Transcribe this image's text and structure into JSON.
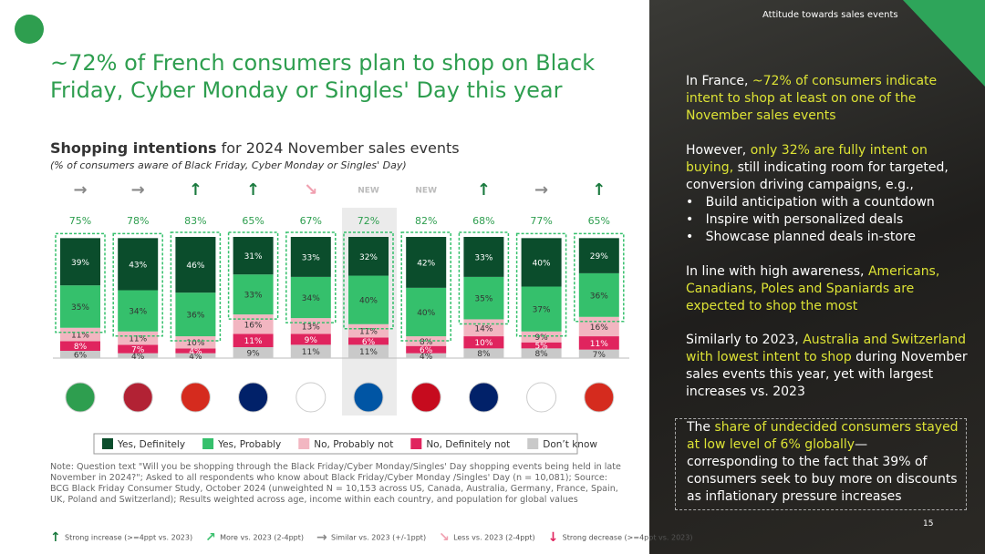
{
  "slide": {
    "headline": "~72% of French consumers plan to shop on Black Friday, Cyber Monday or Singles' Day this year",
    "panel_header": "Attitude towards sales events",
    "page_number": "15",
    "panel": {
      "p1": [
        "In France, ",
        "~72% of consumers indicate intent to shop at least on one of the November sales events"
      ],
      "p2": [
        "However, ",
        "only 32% are fully intent on buying,",
        " still indicating room for targeted, conversion driving campaigns, e.g.,"
      ],
      "bullets": [
        "Build anticipation with a countdown",
        "Inspire with personalized deals",
        "Showcase planned deals in-store"
      ],
      "p3": [
        "In line with high awareness, ",
        "Americans, Canadians, Poles and Spaniards are expected to shop the most"
      ],
      "p4": [
        "Similarly to 2023, ",
        "Australia and Switzerland with lowest intent to shop",
        " during November sales events this year, yet with largest increases vs. 2023"
      ],
      "p5": [
        "The ",
        "share of undecided consumers stayed at low level of 6% globally",
        "— corresponding to the fact that 39% of consumers seek to buy more on discounts as inflationary pressure increases"
      ]
    },
    "note": "Note: Question text \"Will you be shopping through the Black Friday/Cyber Monday/Singles' Day shopping events being held in late November in 2024?\"; Asked to all respondents who know about Black Friday/Cyber Monday /Singles' Day (n = 10,081); Source: BCG Black Friday Consumer Study, October 2024 (unweighted N = 10,153 across US, Canada, Australia, Germany, France, Spain, UK, Poland and Switzerland); Results weighted across age, income within each country, and population for global values",
    "trend_legend": [
      {
        "symbol": "↑",
        "label": "Strong increase (>=4ppt vs. 2023)",
        "color": "#1a7a3e"
      },
      {
        "symbol": "↗",
        "label": "More vs. 2023 (2-4ppt)",
        "color": "#3cc16f"
      },
      {
        "symbol": "→",
        "label": "Similar vs. 2023 (+/-1ppt)",
        "color": "#888888"
      },
      {
        "symbol": "↘",
        "label": "Less vs. 2023 (2-4ppt)",
        "color": "#f0a0b0"
      },
      {
        "symbol": "↓",
        "label": "Strong decrease (>=4ppt vs. 2023)",
        "color": "#e0245e"
      }
    ]
  },
  "chart_data": {
    "type": "stacked_bar",
    "title": "Shopping intentions",
    "title_rest": " for 2024 November sales events",
    "subtitle": "(% of consumers aware of Black Friday, Cyber Monday or Singles' Day)",
    "categories": [
      null,
      null,
      null,
      null,
      null,
      null,
      null,
      null,
      null,
      null
    ],
    "series": [
      {
        "name": "Yes, Definitely",
        "color": "#0b4d2c",
        "values": [
          39,
          43,
          46,
          31,
          33,
          32,
          42,
          33,
          40,
          29
        ],
        "value_labels": [
          "39%",
          "43%",
          "46%",
          "31%",
          "33%",
          "32%",
          "42%",
          "33%",
          "40%",
          "29%"
        ]
      },
      {
        "name": "Yes, Probably",
        "color": "#35c06c",
        "values": [
          35,
          34,
          36,
          33,
          34,
          40,
          40,
          35,
          37,
          36
        ],
        "value_labels": [
          "35%",
          "34%",
          "36%",
          "33%",
          "34%",
          "40%",
          "40%",
          "35%",
          "37%",
          "36%"
        ]
      },
      {
        "name": "No, Probably not",
        "color": "#f2b6c1",
        "values": [
          11,
          11,
          10,
          16,
          13,
          11,
          8,
          14,
          9,
          16
        ],
        "value_labels": [
          "11%",
          "11%",
          "10%",
          "16%",
          "13%",
          "11%",
          "8%",
          "14%",
          "9%",
          "16%"
        ]
      },
      {
        "name": "No, Definitely not",
        "color": "#e0245e",
        "values": [
          8,
          7,
          4,
          11,
          9,
          6,
          6,
          10,
          5,
          11
        ],
        "value_labels": [
          "8%",
          "7%",
          "4%",
          "11%",
          "9%",
          "6%",
          "6%",
          "10%",
          "5%",
          "11%"
        ]
      },
      {
        "name": "Don’t know",
        "color": "#c9c9c9",
        "values": [
          6,
          4,
          4,
          9,
          11,
          11,
          4,
          8,
          8,
          7
        ],
        "value_labels": [
          "6%",
          "4%",
          "4%",
          "9%",
          "11%",
          "11%",
          "4%",
          "8%",
          "8%",
          "7%"
        ]
      }
    ],
    "totals": {
      "values": [
        75,
        78,
        83,
        65,
        67,
        72,
        82,
        68,
        77,
        65
      ],
      "value_labels": [
        "75%",
        "78%",
        "83%",
        "65%",
        "67%",
        "72%",
        "82%",
        "68%",
        "77%",
        "65%"
      ]
    },
    "trends": [
      "→",
      "→",
      "↑",
      "↑",
      "↘",
      "NEW",
      "NEW",
      "↑",
      "→",
      "↑"
    ],
    "trend_colors": [
      "#888888",
      "#888888",
      "#1a7a3e",
      "#1a7a3e",
      "#f0a0b0",
      "#bbbbbb",
      "#bbbbbb",
      "#1a7a3e",
      "#888888",
      "#1a7a3e"
    ]
  }
}
